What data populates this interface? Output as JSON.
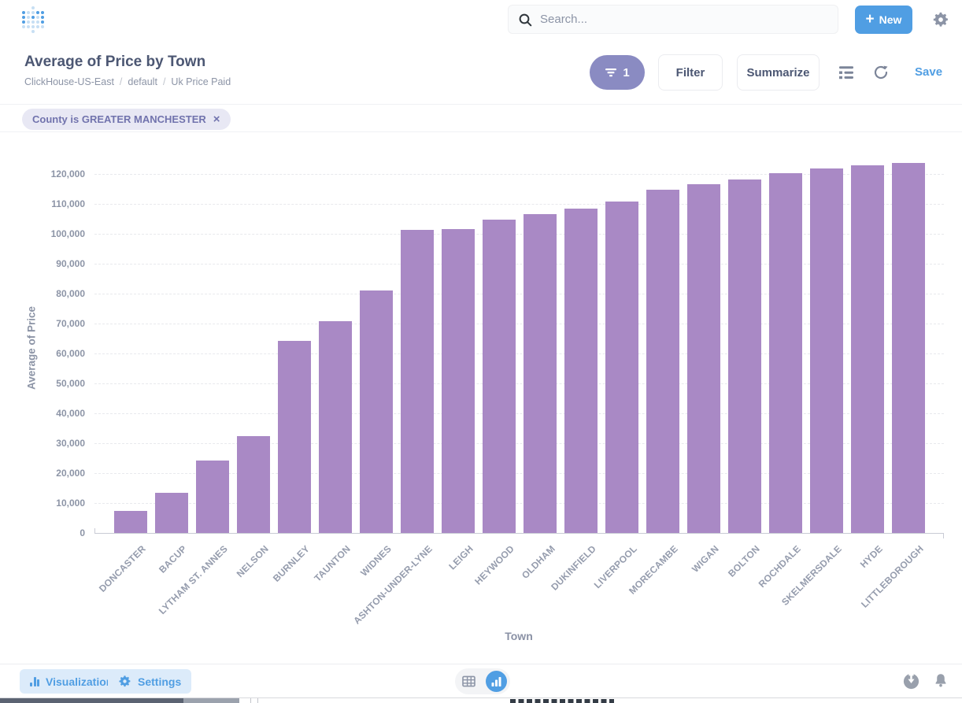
{
  "topnav": {
    "search_placeholder": "Search...",
    "new_label": "New",
    "plus_glyph": "+"
  },
  "question_header": {
    "title": "Average of Price by Town",
    "breadcrumb": [
      "ClickHouse-US-East",
      "default",
      "Uk Price Paid"
    ],
    "crumb_separator": "/",
    "filter_count": "1",
    "filter_label": "Filter",
    "summarize_label": "Summarize",
    "save_label": "Save"
  },
  "filter_bar": {
    "chip_label": "County is GREATER MANCHESTER",
    "close_glyph": "×"
  },
  "chart_data": {
    "type": "bar",
    "title": "Average of Price by Town",
    "xlabel": "Town",
    "ylabel": "Average of Price",
    "ylim": [
      0,
      125000
    ],
    "y_ticks": [
      0,
      10000,
      20000,
      30000,
      40000,
      50000,
      60000,
      70000,
      80000,
      90000,
      100000,
      110000,
      120000
    ],
    "grid": "horizontal-dashed",
    "legend": "none",
    "x_tick_rotation": -45,
    "bar_color": "#A989C5",
    "categories": [
      "DONCASTER",
      "BACUP",
      "LYTHAM ST. ANNES",
      "NELSON",
      "BURNLEY",
      "TAUNTON",
      "WIDNES",
      "ASHTON-UNDER-LYNE",
      "LEIGH",
      "HEYWOOD",
      "OLDHAM",
      "DUKINFIELD",
      "LIVERPOOL",
      "MORECAMBE",
      "WIGAN",
      "BOLTON",
      "ROCHDALE",
      "SKELMERSDALE",
      "HYDE",
      "LITTLEBOROUGH"
    ],
    "values": [
      7500,
      13400,
      24200,
      32500,
      64200,
      70700,
      81000,
      101300,
      101600,
      104700,
      106700,
      108300,
      110800,
      114800,
      116600,
      118100,
      120200,
      121800,
      122800,
      123600
    ]
  },
  "footer": {
    "visualization_label": "Visualization",
    "settings_label": "Settings"
  },
  "colors": {
    "brand_blue": "#509EE3",
    "bar_purple": "#A989C5",
    "filter_pill_purple": "#8A8BC2",
    "chip_bg": "#E8E8F4",
    "chip_text": "#7173AD",
    "title_text": "#4C5773",
    "muted_text": "#949AAB"
  }
}
